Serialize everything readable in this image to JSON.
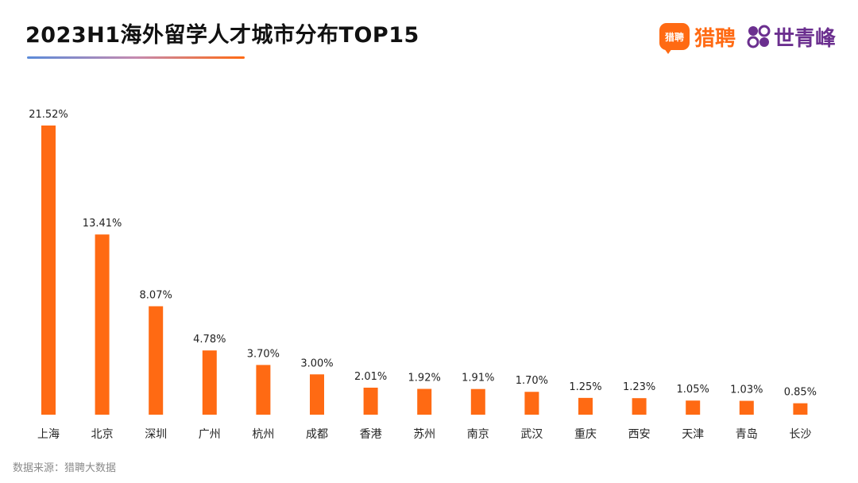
{
  "header": {
    "title": "2023H1海外留学人才城市分布TOP15",
    "brand_liepin_mark": "猎聘",
    "brand_liepin": "猎聘",
    "brand_sqf": "世青峰"
  },
  "footer": {
    "source": "数据来源：猎聘大数据"
  },
  "colors": {
    "bar": "#ff6a13",
    "accent_blue": "#5b8bd9",
    "brand_purple": "#6b2f8f"
  },
  "chart_data": {
    "type": "bar",
    "title": "2023H1海外留学人才城市分布TOP15",
    "categories": [
      "上海",
      "北京",
      "深圳",
      "广州",
      "杭州",
      "成都",
      "香港",
      "苏州",
      "南京",
      "武汉",
      "重庆",
      "西安",
      "天津",
      "青岛",
      "长沙"
    ],
    "values": [
      21.52,
      13.41,
      8.07,
      4.78,
      3.7,
      3.0,
      2.01,
      1.92,
      1.91,
      1.7,
      1.25,
      1.23,
      1.05,
      1.03,
      0.85
    ],
    "value_labels": [
      "21.52%",
      "13.41%",
      "8.07%",
      "4.78%",
      "3.70%",
      "3.00%",
      "2.01%",
      "1.92%",
      "1.91%",
      "1.70%",
      "1.25%",
      "1.23%",
      "1.05%",
      "1.03%",
      "0.85%"
    ],
    "unit": "%",
    "ylim": [
      0,
      21.52
    ],
    "grid": false,
    "legend": "none"
  }
}
